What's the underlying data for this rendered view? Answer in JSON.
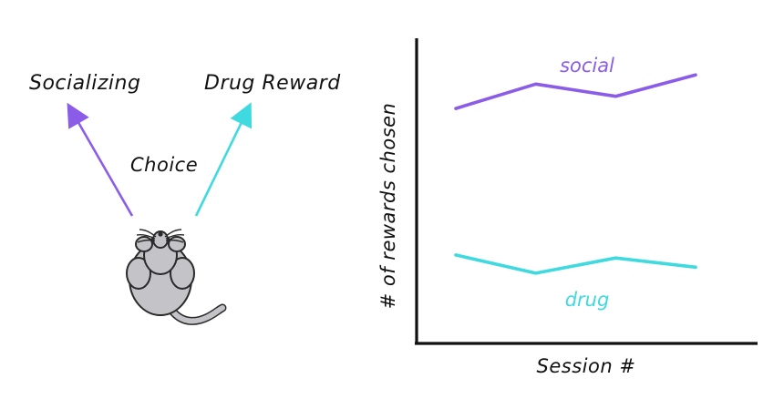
{
  "colors": {
    "social": "#8a5ce8",
    "drug": "#3fd9e0",
    "ink": "#111111",
    "mouse_body": "#c4c4c8",
    "mouse_outline": "#2a2a2a"
  },
  "diagram": {
    "option_left": "Socializing",
    "option_right": "Drug Reward",
    "center_label": "Choice",
    "subject_icon": "mouse-icon"
  },
  "chart_data": {
    "type": "line",
    "xlabel": "Session #",
    "ylabel": "# of rewards chosen",
    "x": [
      1,
      2,
      3,
      4
    ],
    "ylim": [
      0,
      10
    ],
    "grid": false,
    "legend": "inline labels",
    "series": [
      {
        "name": "social",
        "values": [
          7.7,
          8.5,
          8.1,
          8.8
        ]
      },
      {
        "name": "drug",
        "values": [
          2.9,
          2.3,
          2.8,
          2.5
        ]
      }
    ]
  }
}
